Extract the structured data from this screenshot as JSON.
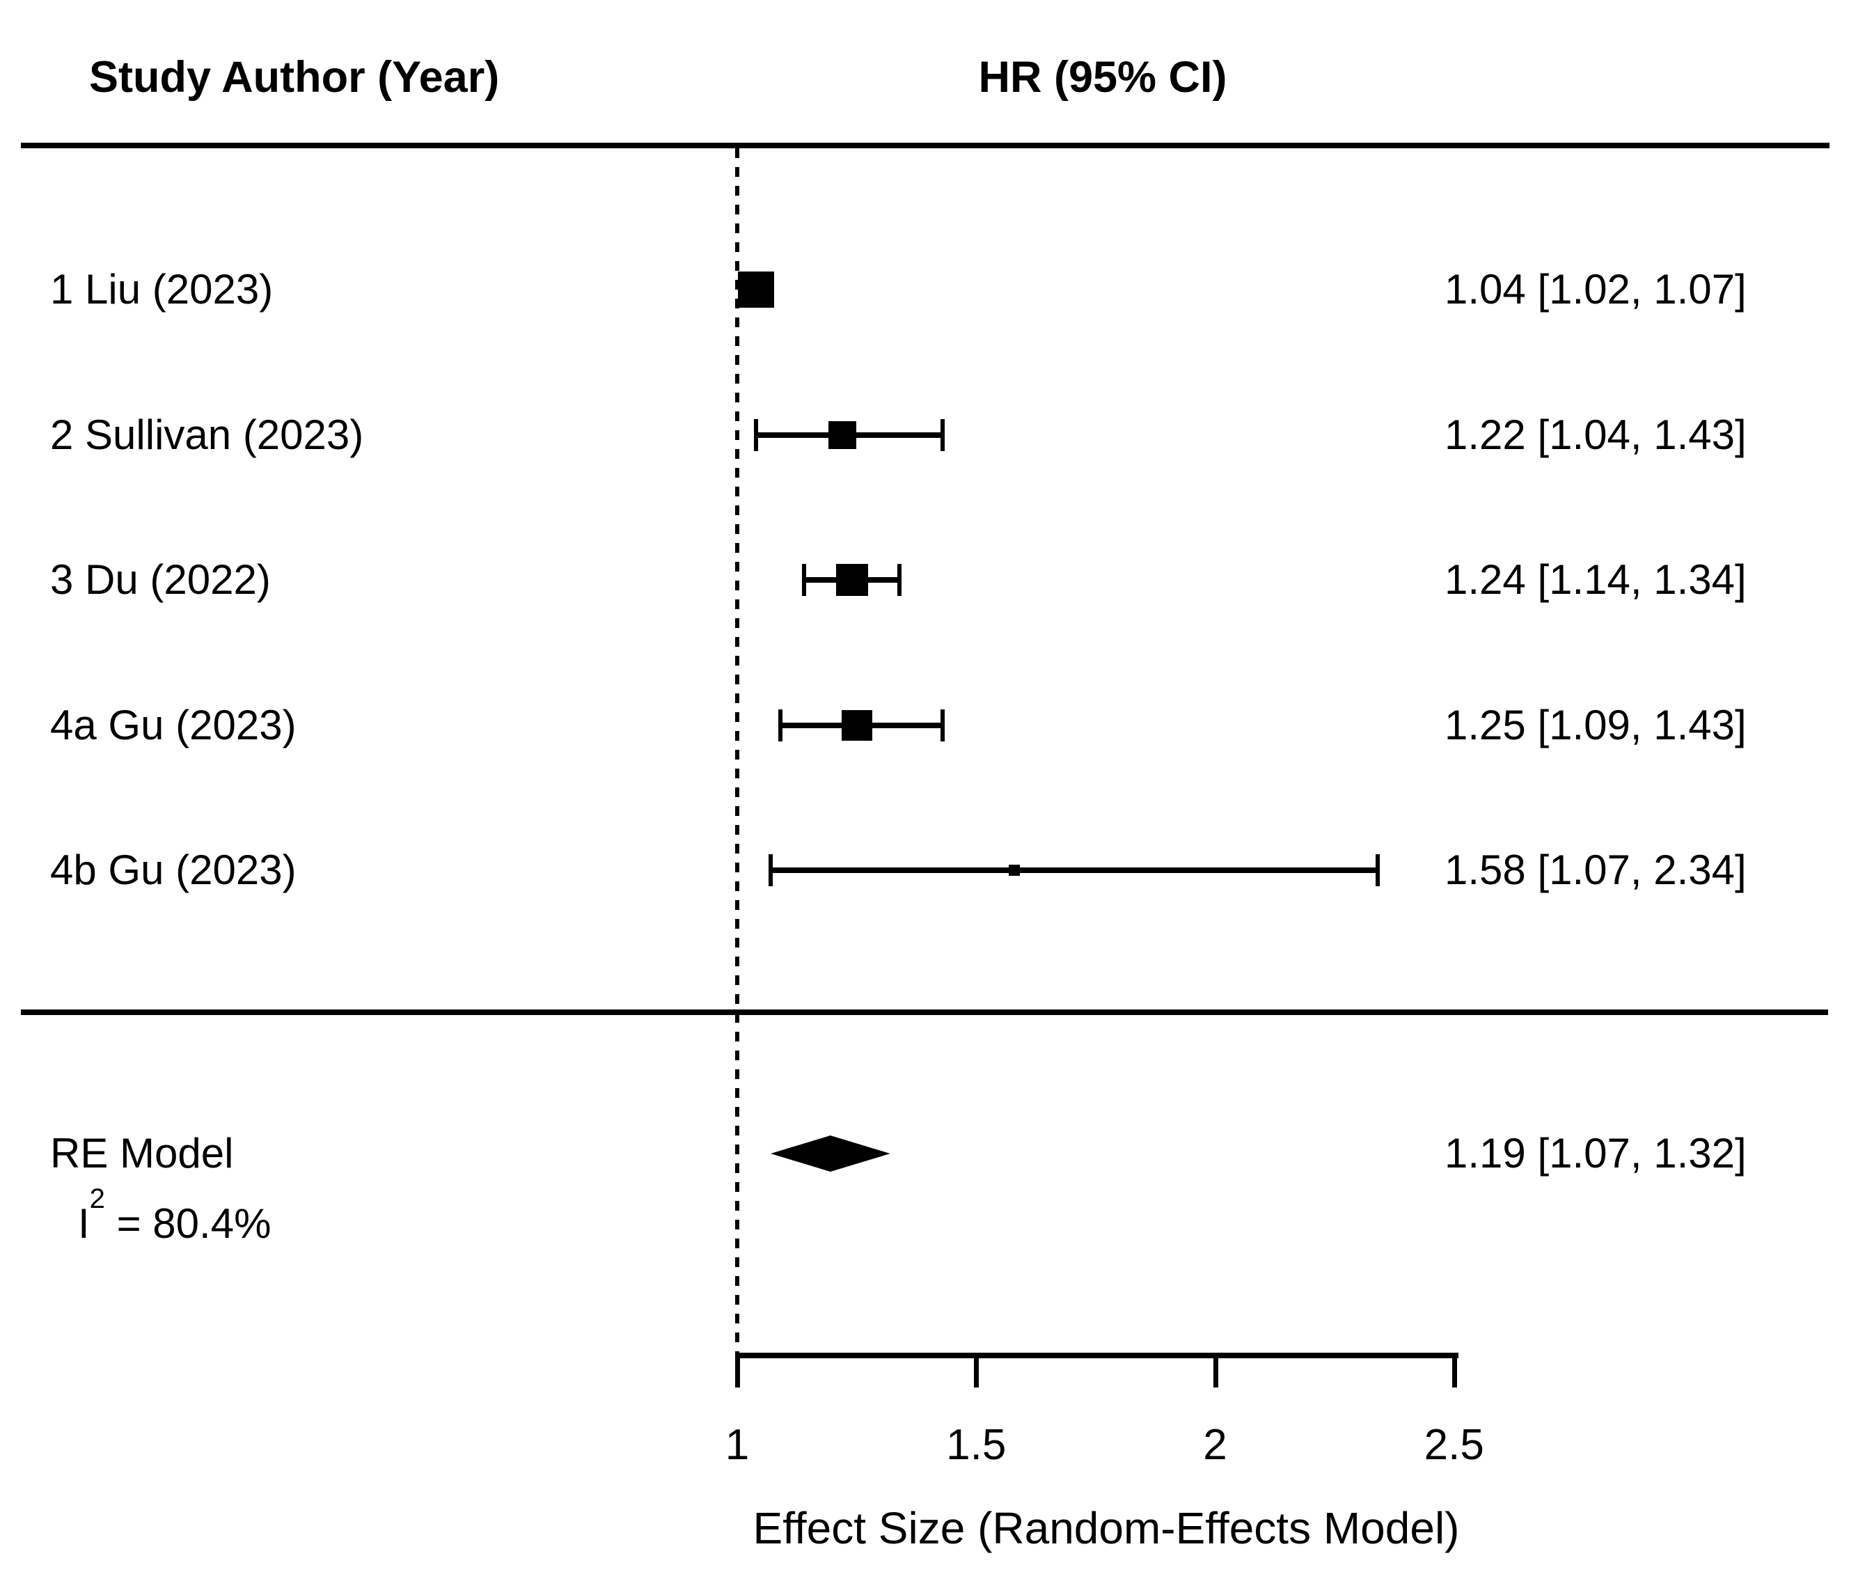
{
  "chart_data": {
    "type": "forest",
    "study_col_header": "Study Author (Year)",
    "hr_col_header": "HR (95% CI)",
    "studies": [
      {
        "label": "1 Liu (2023)",
        "est": 1.04,
        "lo": 1.02,
        "hi": 1.07,
        "hr_text": "1.04 [1.02, 1.07]",
        "marker_size": 52
      },
      {
        "label": "2 Sullivan (2023)",
        "est": 1.22,
        "lo": 1.04,
        "hi": 1.43,
        "hr_text": "1.22 [1.04, 1.43]",
        "marker_size": 40
      },
      {
        "label": "3 Du (2022)",
        "est": 1.24,
        "lo": 1.14,
        "hi": 1.34,
        "hr_text": "1.24 [1.14, 1.34]",
        "marker_size": 46
      },
      {
        "label": "4a Gu (2023)",
        "est": 1.25,
        "lo": 1.09,
        "hi": 1.43,
        "hr_text": "1.25 [1.09, 1.43]",
        "marker_size": 44
      },
      {
        "label": "4b Gu (2023)",
        "est": 1.58,
        "lo": 1.07,
        "hi": 2.34,
        "hr_text": "1.58 [1.07, 2.34]",
        "marker_size": 16
      }
    ],
    "summary": {
      "label": "RE Model",
      "het_prefix": "I",
      "het_sup": "2",
      "het_suffix": " = 80.4%",
      "est": 1.19,
      "lo": 1.07,
      "hi": 1.32,
      "hr_text": "1.19 [1.07, 1.32]"
    },
    "axis": {
      "tick_values": [
        1,
        1.5,
        2,
        2.5
      ],
      "tick_labels": [
        "1",
        "1.5",
        "2",
        "2.5"
      ],
      "reference_value": 1,
      "xlim": [
        1,
        2.5
      ]
    },
    "xlabel": "Effect Size (Random-Effects Model)",
    "ink_color": "#000000",
    "background_color": "#ffffff"
  }
}
